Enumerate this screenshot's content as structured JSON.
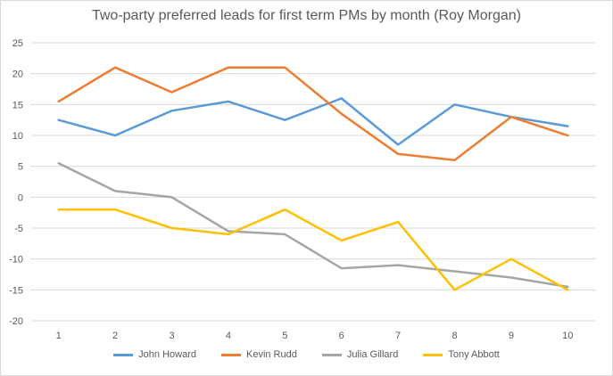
{
  "chart_data": {
    "type": "line",
    "title": "Two-party preferred leads for first term PMs by month (Roy Morgan)",
    "xlabel": "",
    "ylabel": "",
    "x": [
      1,
      2,
      3,
      4,
      5,
      6,
      7,
      8,
      9,
      10
    ],
    "x_tick_labels": [
      "1",
      "2",
      "3",
      "4",
      "5",
      "6",
      "7",
      "8",
      "9",
      "10"
    ],
    "ylim": [
      -20,
      25
    ],
    "y_ticks": [
      25,
      20,
      15,
      10,
      5,
      0,
      -5,
      -10,
      -15,
      -20
    ],
    "y_tick_labels": [
      "25",
      "20",
      "15",
      "10",
      "5",
      "0",
      "-5",
      "-10",
      "-15",
      "-20"
    ],
    "grid": true,
    "legend_position": "bottom",
    "series": [
      {
        "name": "John Howard",
        "color": "#5b9bd5",
        "values": [
          12.5,
          10,
          14,
          15.5,
          12.5,
          16,
          8.5,
          15,
          13,
          11.5
        ]
      },
      {
        "name": "Kevin Rudd",
        "color": "#ed7d31",
        "values": [
          15.5,
          21,
          17,
          21,
          21,
          13.5,
          7,
          6,
          13,
          10
        ]
      },
      {
        "name": "Julia Gillard",
        "color": "#a5a5a5",
        "values": [
          5.5,
          1,
          0,
          -5.5,
          -6,
          -11.5,
          -11,
          -12,
          -13,
          -14.5
        ]
      },
      {
        "name": "Tony Abbott",
        "color": "#ffc000",
        "values": [
          -2,
          -2,
          -5,
          -6,
          -2,
          -7,
          -4,
          -15,
          -10,
          -15
        ]
      }
    ]
  }
}
